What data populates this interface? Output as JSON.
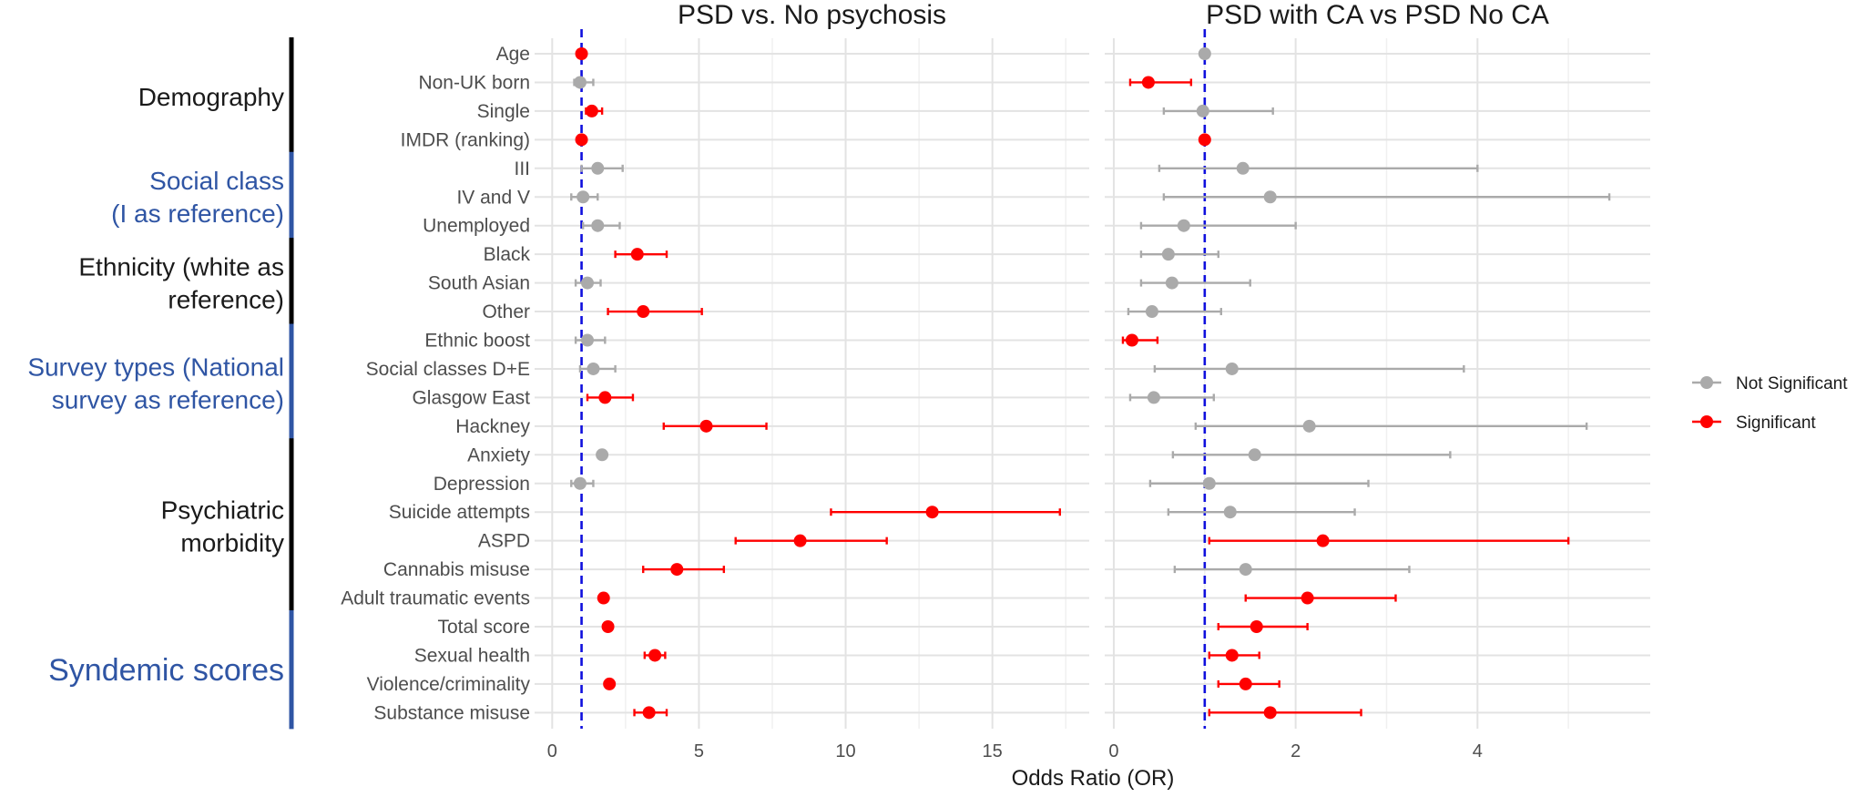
{
  "chart_data": {
    "type": "forest",
    "xlabel": "Odds Ratio (OR)",
    "legend": {
      "position": "right",
      "entries": [
        {
          "label": "Not Significant",
          "color": "#aaaaaa"
        },
        {
          "label": "Significant",
          "color": "#ff0000"
        }
      ]
    },
    "reference_line": {
      "x": 1,
      "style": "dashed",
      "color": "#1010dd"
    },
    "rows": [
      "Age",
      "Non-UK born",
      "Single",
      "IMDR (ranking)",
      "III",
      "IV and V",
      "Unemployed",
      "Black",
      "South Asian",
      "Other",
      "Ethnic boost",
      "Social classes D+E",
      "Glasgow East",
      "Hackney",
      "Anxiety",
      "Depression",
      "Suicide attempts",
      "ASPD",
      "Cannabis misuse",
      "Adult traumatic events",
      "Total score",
      "Sexual health",
      "Violence/criminality",
      "Substance misuse"
    ],
    "groups": [
      {
        "label": "Demography",
        "rows": [
          0,
          3
        ],
        "color": "#1a1a1a",
        "bar": "#000000"
      },
      {
        "label": "Social class\n(I as reference)",
        "rows": [
          4,
          6
        ],
        "color": "#2f55a4",
        "bar": "#2f55a4"
      },
      {
        "label": "Ethnicity (white as\nreference)",
        "rows": [
          7,
          9
        ],
        "color": "#1a1a1a",
        "bar": "#000000"
      },
      {
        "label": "Survey types (National\nsurvey as reference)",
        "rows": [
          10,
          13
        ],
        "color": "#2f55a4",
        "bar": "#2f55a4"
      },
      {
        "label": "Psychiatric\nmorbidity",
        "rows": [
          14,
          19
        ],
        "color": "#1a1a1a",
        "bar": "#000000"
      },
      {
        "label": "Syndemic scores",
        "rows": [
          20,
          23
        ],
        "color": "#2f55a4",
        "bar": "#2f55a4"
      }
    ],
    "panels": [
      {
        "title": "PSD vs. No psychosis",
        "xlim": [
          -0.6,
          18.3
        ],
        "xticks": [
          0,
          5,
          10,
          15
        ],
        "or": [
          1.0,
          0.95,
          1.35,
          1.0,
          1.55,
          1.05,
          1.55,
          2.9,
          1.2,
          3.1,
          1.2,
          1.4,
          1.8,
          5.25,
          1.7,
          0.95,
          12.95,
          8.45,
          4.25,
          1.75,
          1.9,
          3.5,
          1.95,
          3.3
        ],
        "lo": [
          0.95,
          0.75,
          1.15,
          0.98,
          1.0,
          0.65,
          1.05,
          2.15,
          0.8,
          1.9,
          0.8,
          0.95,
          1.2,
          3.8,
          1.7,
          0.65,
          9.5,
          6.25,
          3.1,
          1.75,
          1.9,
          3.15,
          1.95,
          2.8
        ],
        "hi": [
          1.05,
          1.4,
          1.7,
          1.02,
          2.4,
          1.55,
          2.3,
          3.9,
          1.65,
          5.1,
          1.8,
          2.15,
          2.75,
          7.3,
          1.7,
          1.4,
          17.3,
          11.4,
          5.85,
          1.75,
          1.9,
          3.85,
          1.95,
          3.9
        ],
        "sig": [
          true,
          false,
          true,
          true,
          false,
          false,
          false,
          true,
          false,
          true,
          false,
          false,
          true,
          true,
          false,
          false,
          true,
          true,
          true,
          true,
          true,
          true,
          true,
          true
        ]
      },
      {
        "title": "PSD with CA vs PSD No CA",
        "xlim": [
          -0.1,
          5.9
        ],
        "xticks": [
          0,
          2,
          4
        ],
        "or": [
          1.0,
          0.38,
          0.98,
          1.0,
          1.42,
          1.72,
          0.77,
          0.6,
          0.64,
          0.42,
          0.2,
          1.3,
          0.44,
          2.15,
          1.55,
          1.05,
          1.28,
          2.3,
          1.45,
          2.13,
          1.57,
          1.3,
          1.45,
          1.72
        ],
        "lo": [
          0.98,
          0.18,
          0.55,
          0.98,
          0.5,
          0.55,
          0.3,
          0.3,
          0.3,
          0.16,
          0.1,
          0.45,
          0.18,
          0.9,
          0.65,
          0.4,
          0.6,
          1.05,
          0.67,
          1.45,
          1.15,
          1.05,
          1.15,
          1.05
        ],
        "hi": [
          1.02,
          0.85,
          1.75,
          1.02,
          4.0,
          5.45,
          2.0,
          1.15,
          1.5,
          1.18,
          0.48,
          3.85,
          1.1,
          5.2,
          3.7,
          2.8,
          2.65,
          5.0,
          3.25,
          3.1,
          2.13,
          1.6,
          1.82,
          2.72
        ],
        "sig": [
          false,
          true,
          false,
          true,
          false,
          false,
          false,
          false,
          false,
          false,
          true,
          false,
          false,
          false,
          false,
          false,
          false,
          true,
          false,
          true,
          true,
          true,
          true,
          true
        ]
      }
    ]
  }
}
